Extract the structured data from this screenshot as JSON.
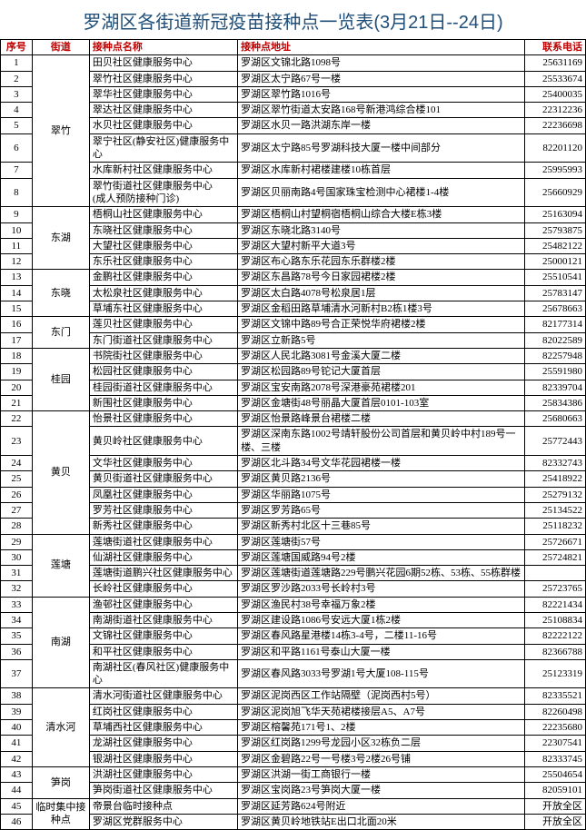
{
  "title": "罗湖区各街道新冠疫苗接种点一览表(3月21日--24日)",
  "headers": {
    "seq": "序号",
    "street": "街道",
    "site": "接种点名称",
    "addr": "接种点地址",
    "phone": "联系电话"
  },
  "groups": [
    {
      "street": "翠竹",
      "rows": [
        {
          "seq": "1",
          "site": "田贝社区健康服务中心",
          "addr": "罗湖区文锦北路1098号",
          "phone": "25631169"
        },
        {
          "seq": "2",
          "site": "翠竹社区健康服务中心",
          "addr": "罗湖区太宁路67号一楼",
          "phone": "25533674"
        },
        {
          "seq": "3",
          "site": "翠华社区健康服务中心",
          "addr": "罗湖区翠竹路1016号",
          "phone": "25400035"
        },
        {
          "seq": "4",
          "site": "翠达社区健康服务中心",
          "addr": "罗湖区翠竹街道太安路168号新港鸿综合楼101",
          "phone": "22312236"
        },
        {
          "seq": "5",
          "site": "水贝社区健康服务中心",
          "addr": "罗湖区水贝一路洪湖东岸一楼",
          "phone": "22236698"
        },
        {
          "seq": "6",
          "site": "翠宁社区(静安社区)健康服务中心",
          "addr": "罗湖区太宁路85号罗湖科技大厦一楼中间部分",
          "phone": "82201120"
        },
        {
          "seq": "7",
          "site": "水库新村社区健康服务中心",
          "addr": "罗湖区水库新村裙楼建楼10栋首层",
          "phone": "25995993"
        },
        {
          "seq": "8",
          "site": "翠竹街道社区健康服务中心\n(成人预防接种门诊)",
          "addr": "罗湖区贝丽南路4号国家珠宝检测中心裙楼1-4楼",
          "phone": "25660929"
        }
      ]
    },
    {
      "street": "东湖",
      "rows": [
        {
          "seq": "9",
          "site": "梧桐山社区健康服务中心",
          "addr": "罗湖区梧桐山村望桐宿梧桐山综合大楼E栋3楼",
          "phone": "25163094"
        },
        {
          "seq": "10",
          "site": "东晓社区健康服务中心",
          "addr": "罗湖区东晓北路3140号",
          "phone": "25793875"
        },
        {
          "seq": "11",
          "site": "大望社区健康服务中心",
          "addr": "罗湖区大望村新平大道3号",
          "phone": "25482122"
        },
        {
          "seq": "12",
          "site": "东乐社区健康服务中心",
          "addr": "罗湖区布心路东乐花园东乐群楼2楼",
          "phone": "25000121"
        }
      ]
    },
    {
      "street": "东晓",
      "rows": [
        {
          "seq": "13",
          "site": "金鹏社区健康服务中心",
          "addr": "罗湖区东昌路78号今日家园裙楼2楼",
          "phone": "25510541"
        },
        {
          "seq": "14",
          "site": "太松泉社区健康服务中心",
          "addr": "罗湖区太白路4078号松泉居1层",
          "phone": "25783147"
        },
        {
          "seq": "15",
          "site": "草埔东社区健康服务中心",
          "addr": "罗湖区金稻田路草埔清水河新村B2栋1楼3号",
          "phone": "25678663"
        }
      ]
    },
    {
      "street": "东门",
      "rows": [
        {
          "seq": "16",
          "site": "莲贝社区健康服务中心",
          "addr": "罗湖区文锦中路89号合正荣悦华府裙楼2楼",
          "phone": "82177314"
        },
        {
          "seq": "17",
          "site": "东门街道社区健康服务中心",
          "addr": "罗湖区立新路5号",
          "phone": "82022589"
        }
      ]
    },
    {
      "street": "桂园",
      "rows": [
        {
          "seq": "18",
          "site": "书院街社区健康服务中心",
          "addr": "罗湖区人民北路3081号金溪大厦二楼",
          "phone": "82257948"
        },
        {
          "seq": "19",
          "site": "松园社区健康服务中心",
          "addr": "罗湖区松园路89号铊记大厦首层",
          "phone": "25591980"
        },
        {
          "seq": "20",
          "site": "桂园街道社区健康服务中心",
          "addr": "罗湖区宝安南路2078号深港豪苑裙楼201",
          "phone": "82339704"
        },
        {
          "seq": "21",
          "site": "新围社区健康服务中心",
          "addr": "罗湖区金塘街48号丽晶大厦首层0101-103室",
          "phone": "25834386"
        }
      ]
    },
    {
      "street": "黄贝",
      "rows": [
        {
          "seq": "22",
          "site": "怡景社区健康服务中心",
          "addr": "罗湖区怡景路峰景台裙楼二楼",
          "phone": "25680663"
        },
        {
          "seq": "23",
          "site": "黄贝岭社区健康服务中心",
          "addr": "罗湖区深南东路1002号靖轩股份公司首层和黄贝岭中村189号一楼、三楼",
          "phone": "25772443"
        },
        {
          "seq": "24",
          "site": "文华社区健康服务中心",
          "addr": "罗湖区北斗路34号文华花园裙楼一楼",
          "phone": "82332743"
        },
        {
          "seq": "25",
          "site": "黄贝街道社区健康服务中心",
          "addr": "罗湖区黄贝路2136号",
          "phone": "25418922"
        },
        {
          "seq": "26",
          "site": "凤凰社区健康服务中心",
          "addr": "罗湖区华丽路1075号",
          "phone": "25279132"
        },
        {
          "seq": "27",
          "site": "罗芳社区健康服务中心",
          "addr": "罗湖区罗芳路65号",
          "phone": "25134522"
        },
        {
          "seq": "28",
          "site": "新秀社区健康服务中心",
          "addr": "罗湖区新秀村北区十三巷85号",
          "phone": "25118232"
        }
      ]
    },
    {
      "street": "莲塘",
      "rows": [
        {
          "seq": "29",
          "site": "莲塘街道社区健康服务中心",
          "addr": "罗湖区莲塘街57号",
          "phone": "25726671"
        },
        {
          "seq": "30",
          "site": "仙湖社区健康服务中心",
          "addr": "罗湖区莲塘国威路94号2楼",
          "phone": "25724821"
        },
        {
          "seq": "31",
          "site": "莲塘街道鹏兴社区健康服务中心",
          "addr": "罗湖区莲塘街道莲塘路229号鹏兴花园6期52栋、53栋、55栋群楼",
          "phone": ""
        },
        {
          "seq": "32",
          "site": "长岭社区健康服务中心",
          "addr": "罗湖区罗沙路2033号长岭村3号",
          "phone": "25723765"
        }
      ]
    },
    {
      "street": "南湖",
      "rows": [
        {
          "seq": "33",
          "site": "渔邨社区健康服务中心",
          "addr": "罗湖区渔民村38号幸福万象2楼",
          "phone": "82221434"
        },
        {
          "seq": "34",
          "site": "南湖街道社区健康服务中心",
          "addr": "罗湖区建设路1086号安远大厦1栋2楼",
          "phone": "25108834"
        },
        {
          "seq": "35",
          "site": "文锦社区健康服务中心",
          "addr": "罗湖区春风路星港楼14栋3-4号，二楼11-16号",
          "phone": "82222122"
        },
        {
          "seq": "36",
          "site": "和平社区健康服务中心",
          "addr": "罗湖区和平路1161号泰山大厦一楼",
          "phone": "82366788"
        },
        {
          "seq": "37",
          "site": "南湖社区(春风社区)健康服务中心",
          "addr": "罗湖区春风路3033号罗湖1号大厦108-115号",
          "phone": "25123319"
        }
      ]
    },
    {
      "street": "清水河",
      "rows": [
        {
          "seq": "38",
          "site": "清水河街道社区健康服务中心",
          "addr": "罗湖区泥岗西区工作站隔壁（泥岗西村5号）",
          "phone": "82335521"
        },
        {
          "seq": "39",
          "site": "红岗社区健康服务中心",
          "addr": "罗湖区泥岗旭飞华天苑裙楼接层A5、A7号",
          "phone": "82260498"
        },
        {
          "seq": "40",
          "site": "草埔西社区健康服务中心",
          "addr": "罗湖区榕馨苑171号1、2楼",
          "phone": "22235680"
        },
        {
          "seq": "41",
          "site": "龙湖社区健康服务中心",
          "addr": "罗湖区红岗路1299号龙园小区32栋负二层",
          "phone": "22307541"
        },
        {
          "seq": "42",
          "site": "银湖社区健康服务中心",
          "addr": "罗湖区金碧路22号一号楼3号2楼26号铺",
          "phone": "82333745"
        }
      ]
    },
    {
      "street": "笋岗",
      "rows": [
        {
          "seq": "43",
          "site": "洪湖社区健康服务中心",
          "addr": "罗湖区洪湖一街工商银行一楼",
          "phone": "25504654"
        },
        {
          "seq": "44",
          "site": "笋岗街道社区健康服务中心",
          "addr": "罗湖区宝岗路23号笋岗大厦一楼",
          "phone": "82059101"
        }
      ]
    },
    {
      "street": "临时集中接种点",
      "rows": [
        {
          "seq": "45",
          "site": "帝景台临时接种点",
          "addr": "罗湖区延芳路624号附近",
          "phone": "开放全区"
        },
        {
          "seq": "46",
          "site": "罗湖区党群服务中心",
          "addr": "罗湖区黄贝岭地铁站E出口北面20米",
          "phone": "开放全区"
        }
      ]
    }
  ]
}
